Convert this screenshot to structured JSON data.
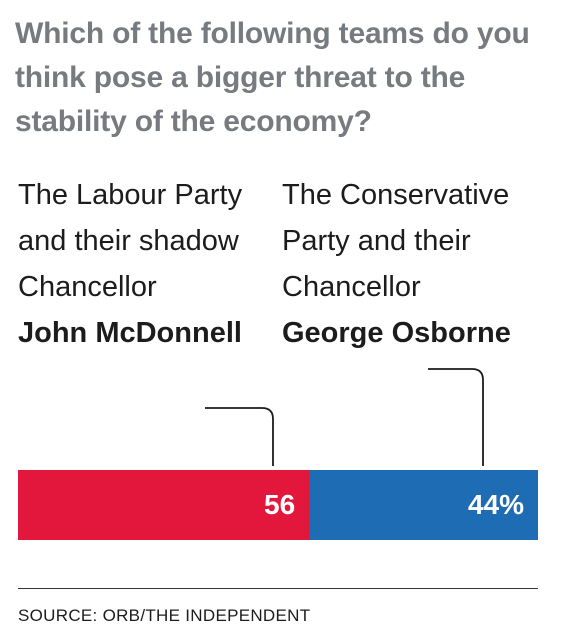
{
  "question": "Which of the following teams do you think pose a bigger threat to the stability of the economy?",
  "left_label": {
    "text": "The Labour Party and their shadow Chancellor",
    "name": "John McDonnell"
  },
  "right_label": {
    "text": "The Conservative Party and their Chancellor",
    "name": "George Osborne"
  },
  "source": "SOURCE: ORB/THE INDEPENDENT",
  "colors": {
    "labour": "#e3173c",
    "conservative": "#1e6db4",
    "question_text": "#777b80"
  },
  "chart_data": {
    "type": "bar",
    "orientation": "horizontal-stacked",
    "unit": "%",
    "categories": [
      "The Labour Party and their shadow Chancellor John McDonnell",
      "The Conservative Party and their Chancellor George Osborne"
    ],
    "values": [
      56,
      44
    ],
    "data_labels": [
      "56",
      "44%"
    ],
    "total": 100
  }
}
